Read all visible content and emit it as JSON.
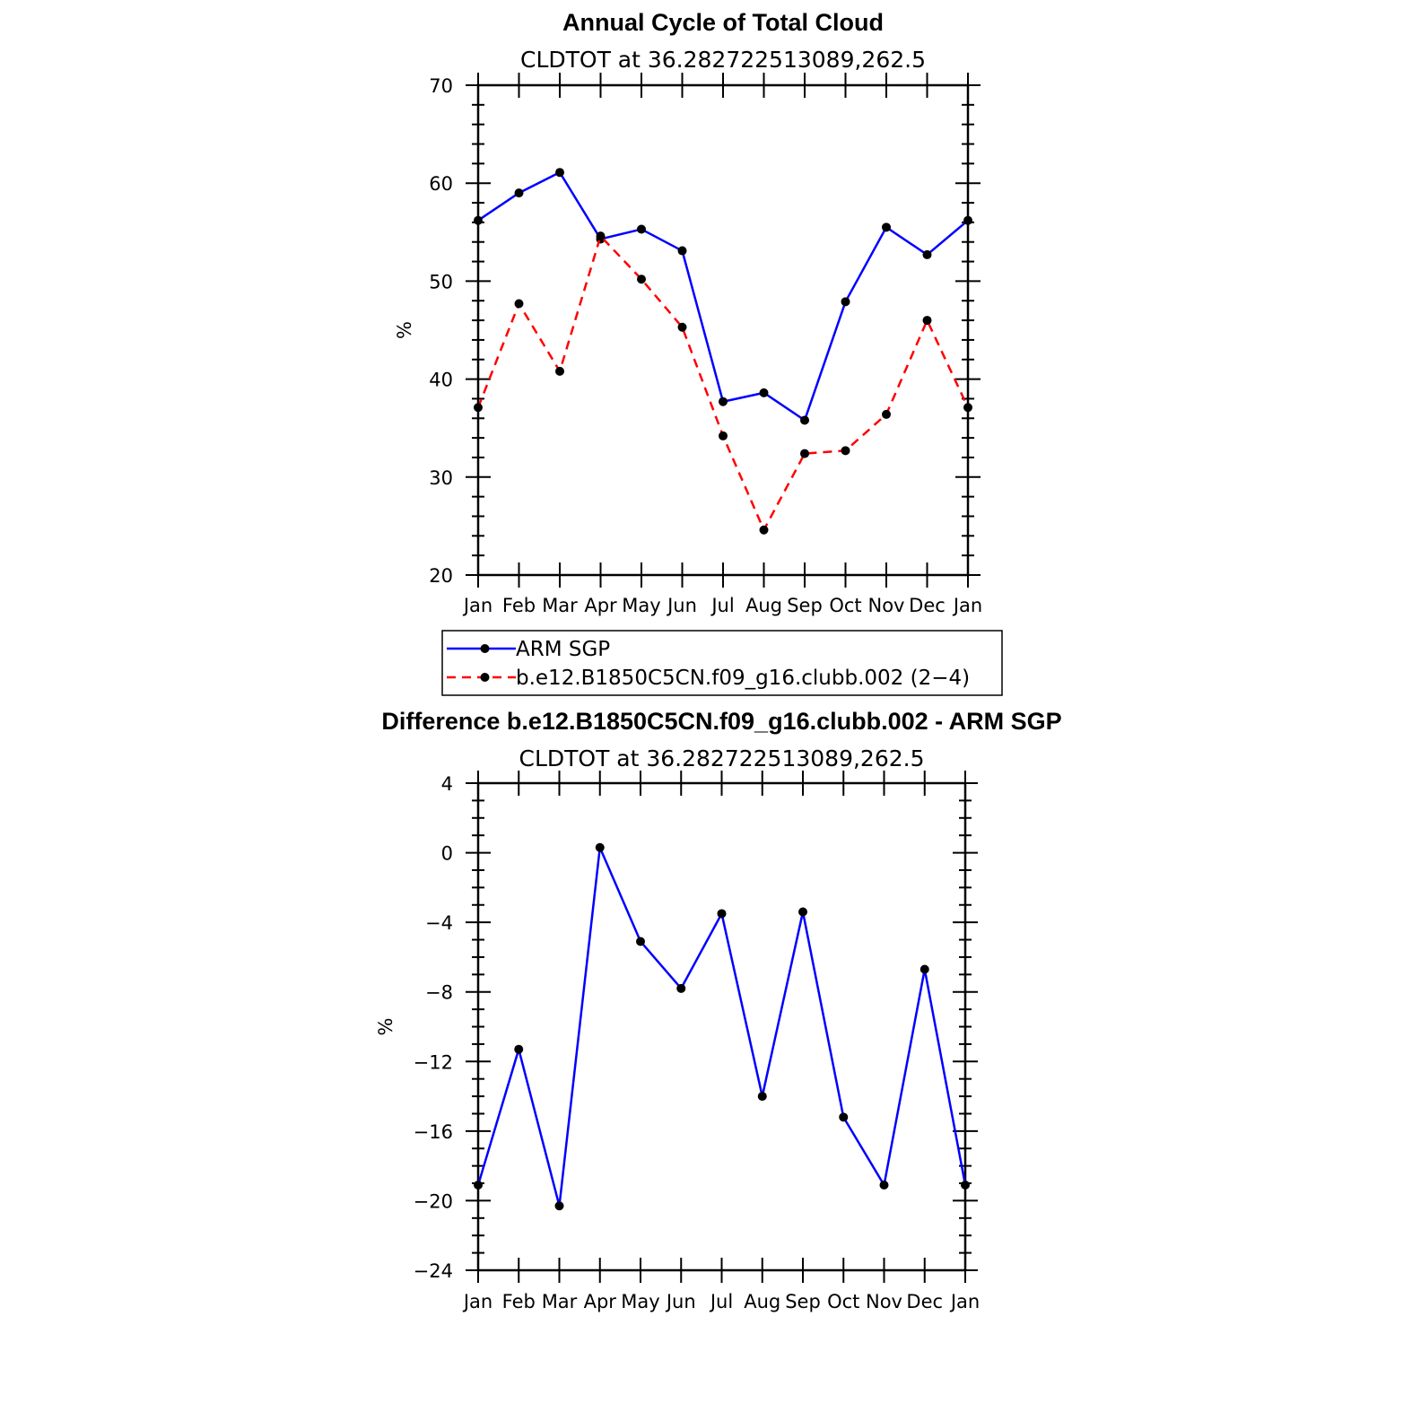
{
  "chart_data": [
    {
      "type": "line",
      "title": "Annual Cycle of Total Cloud",
      "subtitle": "CLDTOT at 36.282722513089,262.5",
      "ylabel": "%",
      "xlabel": "",
      "categories": [
        "Jan",
        "Feb",
        "Mar",
        "Apr",
        "May",
        "Jun",
        "Jul",
        "Aug",
        "Sep",
        "Oct",
        "Nov",
        "Dec",
        "Jan"
      ],
      "ylim": [
        20,
        70
      ],
      "yticks": [
        "20",
        "30",
        "40",
        "50",
        "60",
        "70"
      ],
      "series": [
        {
          "name": "ARM SGP",
          "color": "#0000ff",
          "dash": "solid",
          "values": [
            56.2,
            59.0,
            61.1,
            54.3,
            55.3,
            53.1,
            37.7,
            38.6,
            35.8,
            47.9,
            55.5,
            52.7,
            56.2
          ]
        },
        {
          "name": "b.e12.B1850C5CN.f09_g16.clubb.002 (2−4)",
          "color": "#ff0000",
          "dash": "dashed",
          "values": [
            37.1,
            47.7,
            40.8,
            54.6,
            50.2,
            45.3,
            34.2,
            24.6,
            32.4,
            32.7,
            36.4,
            46.0,
            37.1
          ]
        }
      ],
      "legend": "below"
    },
    {
      "type": "line",
      "title": "Difference b.e12.B1850C5CN.f09_g16.clubb.002 - ARM SGP",
      "subtitle": "CLDTOT at 36.282722513089,262.5",
      "ylabel": "%",
      "xlabel": "",
      "categories": [
        "Jan",
        "Feb",
        "Mar",
        "Apr",
        "May",
        "Jun",
        "Jul",
        "Aug",
        "Sep",
        "Oct",
        "Nov",
        "Dec",
        "Jan"
      ],
      "ylim": [
        -24,
        4
      ],
      "yticks": [
        "−24",
        "−20",
        "−16",
        "−12",
        "−8",
        "−4",
        "0",
        "4"
      ],
      "series": [
        {
          "color": "#0000ff",
          "dash": "solid",
          "values": [
            -19.1,
            -11.3,
            -20.3,
            0.3,
            -5.1,
            -7.8,
            -3.5,
            -14.0,
            -3.4,
            -15.2,
            -19.1,
            -6.7,
            -19.1
          ]
        }
      ]
    }
  ]
}
